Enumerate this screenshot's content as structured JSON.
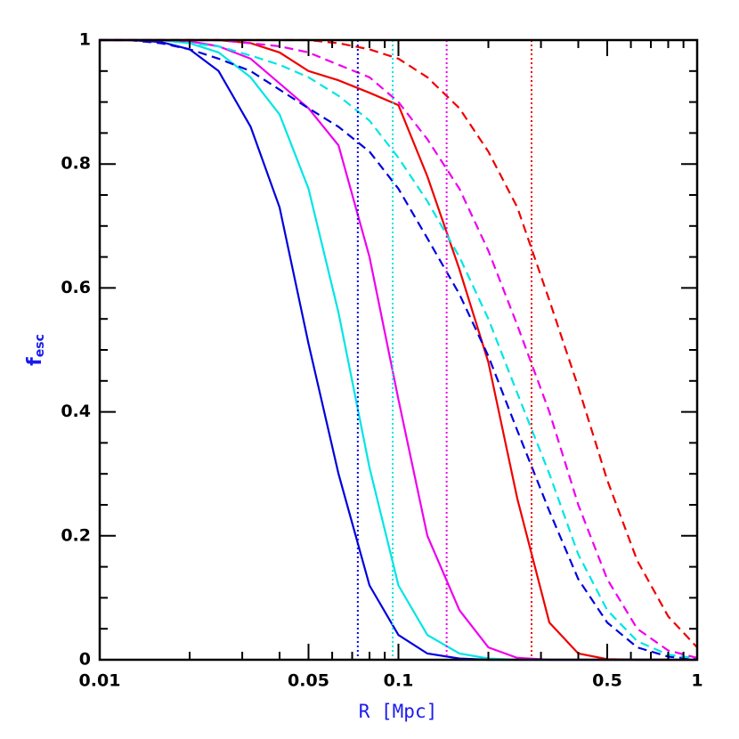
{
  "chart_data": {
    "type": "line",
    "xlabel": "R [Mpc]",
    "ylabel": {
      "main": "f",
      "sub": "esc"
    },
    "xscale": "log",
    "xlim": [
      0.01,
      1
    ],
    "ylim": [
      0,
      1
    ],
    "xticks": [
      0.01,
      0.05,
      0.1,
      0.5,
      1
    ],
    "xminor_ticks": [
      0.02,
      0.03,
      0.04,
      0.06,
      0.07,
      0.08,
      0.09,
      0.2,
      0.3,
      0.4,
      0.6,
      0.7,
      0.8,
      0.9
    ],
    "yticks": [
      0,
      0.2,
      0.4,
      0.6,
      0.8,
      1
    ],
    "yminor_ticks": [
      0.05,
      0.1,
      0.15,
      0.25,
      0.3,
      0.35,
      0.45,
      0.5,
      0.55,
      0.65,
      0.7,
      0.75,
      0.85,
      0.9,
      0.95
    ],
    "x": [
      0.01,
      0.0125,
      0.016,
      0.02,
      0.025,
      0.032,
      0.04,
      0.05,
      0.063,
      0.08,
      0.1,
      0.125,
      0.16,
      0.2,
      0.25,
      0.32,
      0.4,
      0.5,
      0.63,
      0.8,
      1
    ],
    "series": [
      {
        "color": "#0000dd",
        "dash": "solid",
        "values": [
          1,
          1,
          0.997,
          0.985,
          0.95,
          0.86,
          0.73,
          0.51,
          0.3,
          0.12,
          0.04,
          0.01,
          0.002,
          0,
          0,
          0,
          0,
          0,
          0,
          0,
          0
        ]
      },
      {
        "color": "#00e5e5",
        "dash": "solid",
        "values": [
          1,
          1,
          1,
          0.995,
          0.98,
          0.94,
          0.88,
          0.76,
          0.56,
          0.31,
          0.12,
          0.04,
          0.01,
          0.002,
          0,
          0,
          0,
          0,
          0,
          0,
          0
        ]
      },
      {
        "color": "#ee00ee",
        "dash": "solid",
        "values": [
          1,
          1,
          1,
          0.998,
          0.99,
          0.97,
          0.93,
          0.89,
          0.83,
          0.65,
          0.42,
          0.2,
          0.08,
          0.02,
          0.003,
          0,
          0,
          0,
          0,
          0,
          0
        ]
      },
      {
        "color": "#ee0000",
        "dash": "solid",
        "values": [
          1,
          1,
          1,
          1,
          1,
          0.995,
          0.98,
          0.95,
          0.935,
          0.915,
          0.895,
          0.78,
          0.63,
          0.48,
          0.26,
          0.06,
          0.01,
          0.001,
          0,
          0,
          0
        ]
      },
      {
        "color": "#0000dd",
        "dash": "dashed",
        "values": [
          1,
          1,
          0.995,
          0.985,
          0.97,
          0.95,
          0.92,
          0.89,
          0.86,
          0.82,
          0.76,
          0.68,
          0.59,
          0.49,
          0.37,
          0.24,
          0.13,
          0.06,
          0.02,
          0.005,
          0.001
        ]
      },
      {
        "color": "#00e5e5",
        "dash": "dashed",
        "values": [
          1,
          1,
          1,
          0.995,
          0.99,
          0.975,
          0.96,
          0.94,
          0.91,
          0.87,
          0.81,
          0.74,
          0.65,
          0.55,
          0.43,
          0.3,
          0.17,
          0.08,
          0.03,
          0.008,
          0.002
        ]
      },
      {
        "color": "#ee00ee",
        "dash": "dashed",
        "values": [
          1,
          1,
          1,
          1,
          1,
          0.995,
          0.99,
          0.98,
          0.96,
          0.94,
          0.9,
          0.84,
          0.76,
          0.66,
          0.54,
          0.4,
          0.25,
          0.13,
          0.05,
          0.015,
          0.003
        ]
      },
      {
        "color": "#ee0000",
        "dash": "dashed",
        "values": [
          1,
          1,
          1,
          1,
          1,
          1,
          1,
          1,
          0.995,
          0.985,
          0.97,
          0.94,
          0.89,
          0.82,
          0.73,
          0.58,
          0.44,
          0.29,
          0.16,
          0.07,
          0.02
        ]
      }
    ],
    "vlines": [
      {
        "x": 0.0731,
        "color": "#0000dd"
      },
      {
        "x": 0.0957,
        "color": "#00e5e5"
      },
      {
        "x": 0.145,
        "color": "#ee00ee"
      },
      {
        "x": 0.279,
        "color": "#ee0000"
      }
    ]
  }
}
